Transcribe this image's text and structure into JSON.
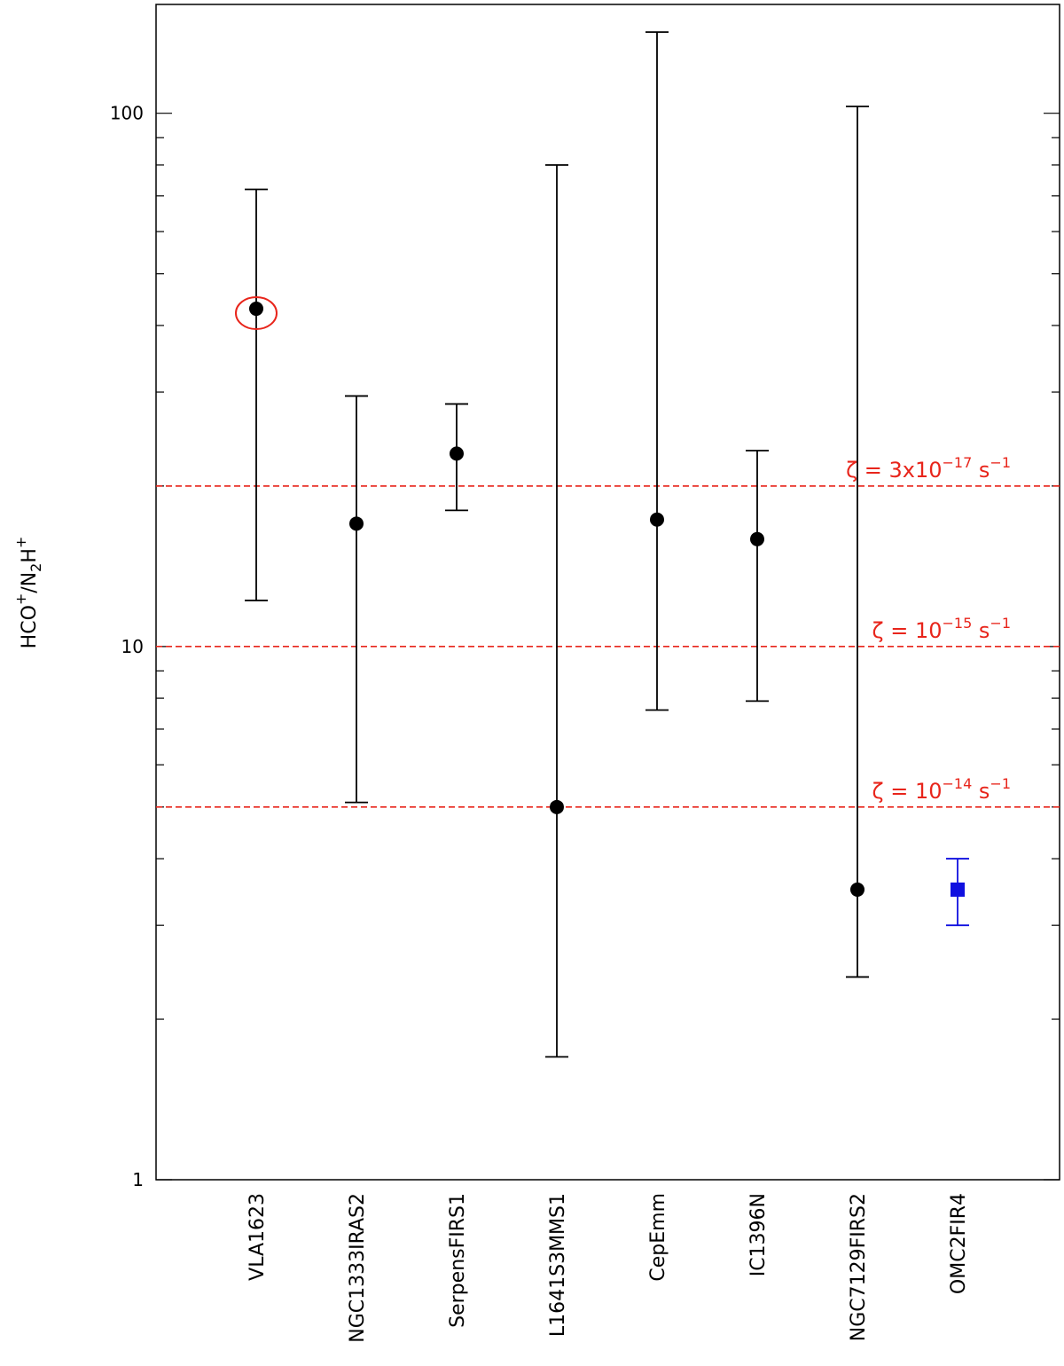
{
  "chart_data": {
    "type": "scatter",
    "yscale": "log",
    "ylim": [
      1,
      160
    ],
    "ylabel": {
      "main": "HCO",
      "sup1": "+",
      "mid": "/N",
      "sub": "2",
      "end": "H",
      "sup2": "+"
    },
    "yticks": [
      {
        "value": 1,
        "label": "1"
      },
      {
        "value": 10,
        "label": "10"
      },
      {
        "value": 100,
        "label": "100"
      }
    ],
    "categories": [
      "VLA1623",
      "NGC1333IRAS2",
      "SerpensFIRS1",
      "L1641S3MMS1",
      "CepEmm",
      "IC1396N",
      "NGC7129FIRS2",
      "OMC2FIR4"
    ],
    "series": [
      {
        "color": "#000000",
        "marker": "circle",
        "points": [
          {
            "category": "VLA1623",
            "y": 43,
            "ylow": 12.2,
            "yhigh": 72
          },
          {
            "category": "NGC1333IRAS2",
            "y": 17,
            "ylow": 5.1,
            "yhigh": 29.5
          },
          {
            "category": "SerpensFIRS1",
            "y": 23,
            "ylow": 18,
            "yhigh": 28.5
          },
          {
            "category": "L1641S3MMS1",
            "y": 5.0,
            "ylow": 1.7,
            "yhigh": 80
          },
          {
            "category": "CepEmm",
            "y": 17.3,
            "ylow": 7.6,
            "yhigh": 142
          },
          {
            "category": "IC1396N",
            "y": 15.9,
            "ylow": 7.9,
            "yhigh": 23.3
          },
          {
            "category": "NGC7129FIRS2",
            "y": 3.5,
            "ylow": 2.4,
            "yhigh": 103
          }
        ]
      },
      {
        "color": "#1010e0",
        "marker": "square",
        "points": [
          {
            "category": "OMC2FIR4",
            "y": 3.5,
            "ylow": 3.0,
            "yhigh": 4.0
          }
        ]
      }
    ],
    "hlines": [
      {
        "y": 20,
        "color": "#e8251b",
        "style": "dashed",
        "label": {
          "prefix": "ζ = 3x10",
          "exp": "−17",
          "suffix": " s",
          "unit_exp": "−1"
        }
      },
      {
        "y": 10,
        "color": "#e8251b",
        "style": "dashed",
        "label": {
          "prefix": "ζ = 10",
          "exp": "−15",
          "suffix": " s",
          "unit_exp": "−1"
        }
      },
      {
        "y": 5,
        "color": "#e8251b",
        "style": "dashed",
        "label": {
          "prefix": "ζ = 10",
          "exp": "−14",
          "suffix": " s",
          "unit_exp": "−1"
        }
      }
    ],
    "highlight": {
      "category": "VLA1623",
      "shape": "ellipse",
      "color": "#e8251b"
    },
    "grid": false
  }
}
